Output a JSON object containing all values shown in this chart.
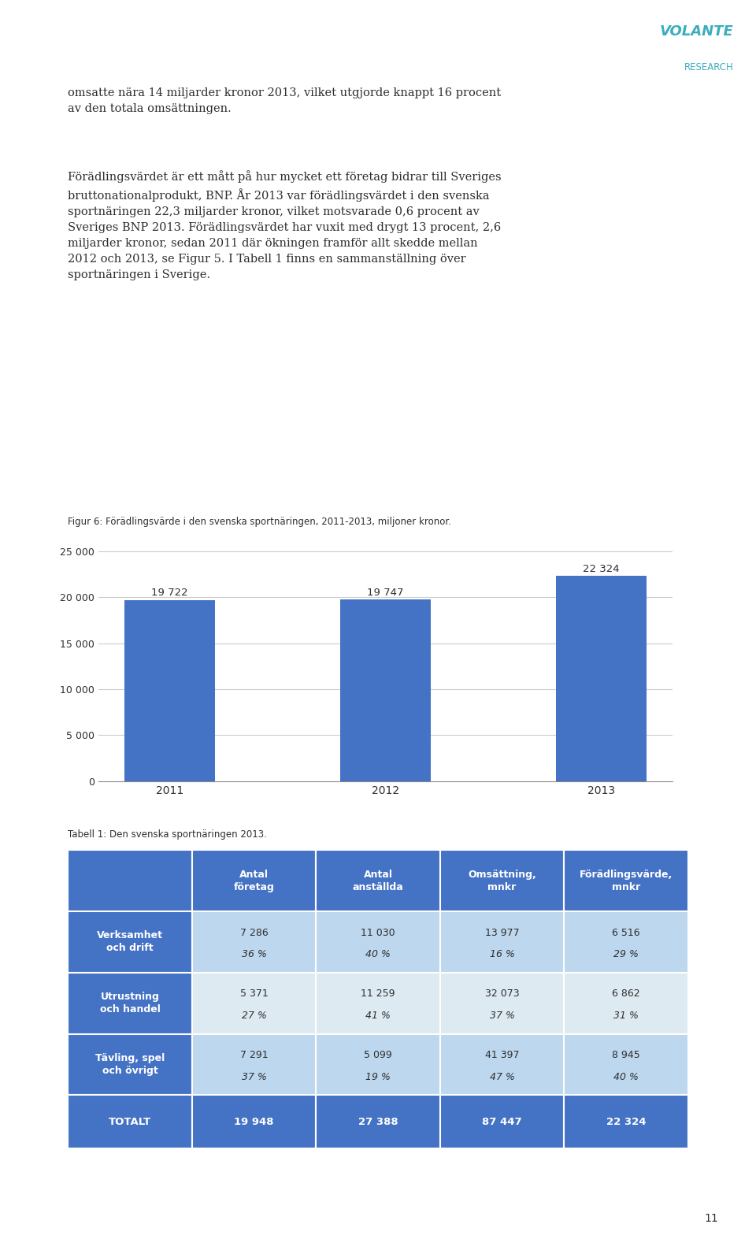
{
  "body_text_para1": "omsatte nära 14 miljarder kronor 2013, vilket utgjorde knappt 16 procent\nav den totala omsättningen.",
  "body_text_para2": "Förädlingsvärdet är ett mått på hur mycket ett företag bidrar till Sveriges\nbruttonationalprodukt, BNP. År 2013 var förädlingsvärdet i den svenska\nsportnäringen 22,3 miljarder kronor, vilket motsvarade 0,6 procent av\nSveriges BNP 2013. Förädlingsvärdet har vuxit med drygt 13 procent, 2,6\nmiljarder kronor, sedan 2011 där ökningen framför allt skedde mellan\n2012 och 2013, se Figur 5. I Tabell 1 finns en sammanställning över\nsportnäringen i Sverige.",
  "chart_caption": "Figur 6: Förädlingsvärde i den svenska sportnäringen, 2011-2013, miljoner kronor.",
  "bar_years": [
    "2011",
    "2012",
    "2013"
  ],
  "bar_values": [
    19722,
    19747,
    22324
  ],
  "bar_labels": [
    "19 722",
    "19 747",
    "22 324"
  ],
  "bar_color": "#4472C4",
  "yticks": [
    0,
    5000,
    10000,
    15000,
    20000,
    25000
  ],
  "ytick_labels": [
    "0",
    "5 000",
    "10 000",
    "15 000",
    "20 000",
    "25 000"
  ],
  "ylim": [
    0,
    26500
  ],
  "table_caption": "Tabell 1: Den svenska sportnäringen 2013.",
  "table_header_bg": "#4472C4",
  "table_row_bg_dark": "#4472C4",
  "table_row_bg_light": "#BDD7EE",
  "table_row_bg_lighter": "#DEEAF1",
  "col_headers": [
    "Antal\nföretag",
    "Antal\nanställda",
    "Omsättning,\nmnkr",
    "Förädlingsvärde,\nmnkr"
  ],
  "row_labels": [
    "Verksamhet\noch drift",
    "Utrustning\noch handel",
    "Tävling, spel\noch övrigt",
    "TOTALT"
  ],
  "table_data": [
    [
      "7 286\n36 %",
      "11 030\n40 %",
      "13 977\n16 %",
      "6 516\n29 %"
    ],
    [
      "5 371\n27 %",
      "11 259\n41 %",
      "32 073\n37 %",
      "6 862\n31 %"
    ],
    [
      "7 291\n37 %",
      "5 099\n19 %",
      "41 397\n47 %",
      "8 945\n40 %"
    ],
    [
      "19 948",
      "27 388",
      "87 447",
      "22 324"
    ]
  ],
  "page_number": "11",
  "logo_text_volante": "VOLANTE",
  "logo_text_research": "RESEARCH",
  "logo_color": "#3AAEBD",
  "bg_color": "#FFFFFF",
  "text_color": "#2E2E2E"
}
